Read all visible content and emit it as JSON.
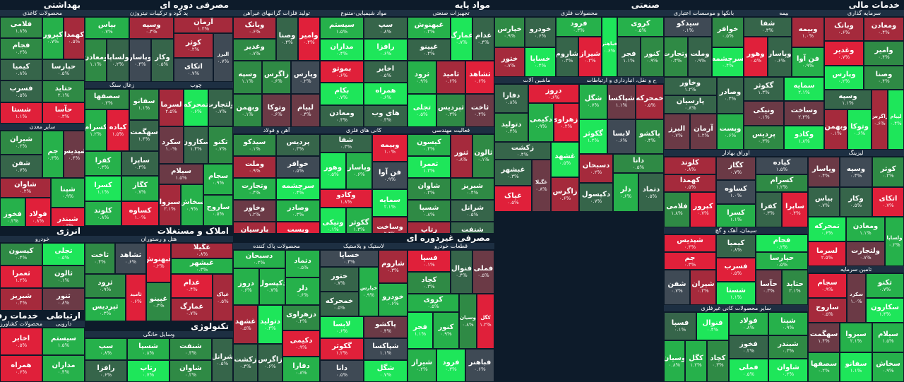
{
  "colors": {
    "strong_pos": "#1ee65a",
    "pos": "#26b14b",
    "mid_pos": "#2f8a45",
    "weak_pos": "#36654a",
    "neutral": "#3f4a55",
    "weak_neg": "#6b3a46",
    "neg": "#a52a3c",
    "strong_neg": "#e0203a"
  },
  "sectors": [
    {
      "id": "mali",
      "title": "خدمات مالی"
    },
    {
      "id": "sanati",
      "title": "صنعتی"
    },
    {
      "id": "mavad",
      "title": "مواد پایه"
    },
    {
      "id": "masraf_doreh",
      "title": "مصرفی دوره ای"
    },
    {
      "id": "behdashti",
      "title": "بهداشتی"
    },
    {
      "id": "masraf_gheir",
      "title": "مصرفی غیردوره ای"
    },
    {
      "id": "amlak",
      "title": "املاک و مستغلات"
    },
    {
      "id": "energy",
      "title": "انرژی"
    },
    {
      "id": "technology",
      "title": "تکنولوژی"
    },
    {
      "id": "ertebat",
      "title": "ارتباطی"
    },
    {
      "id": "refahi",
      "title": "خدمات رفاهی"
    }
  ],
  "subheaders": [
    "سرمایه گذاری",
    "بیمه",
    "بانکها و موسسات اعتباری",
    "لیزینگ",
    "تامین سرمایه",
    "اوراق بهادار",
    "سیمان، آهک و گچ",
    "سایر محصولات کانی غیرفلزی",
    "محصولات فلزی",
    "ح و نقل، انبارداری و ارتباطات",
    "ماشین آلات",
    "تجهیزات صنعتی",
    "فعالیت مهندسی",
    "مواد شیمیایی-متنوع",
    "تولید فلزات گرانبهای غیرآهن",
    "کانی های فلزی",
    "آهن و فولاد",
    "ید گود و ترکیبات نیتروژن",
    "چوب",
    "زغال سنگ",
    "محصولات کاغذی",
    "سایر معدن",
    "قطعات خودرو",
    "لاستیک و پلاستیک",
    "محصولات پاک کننده",
    "هتل و رستوران",
    "خودرو",
    "وسایل خانگی",
    "دارویی",
    "محصولات کشاورزی و دامپروری",
    "محصولات لبنی",
    "سایر محصولات غذایی",
    "قند و شکر",
    "شیرینیجات",
    "نساجی",
    "انبوه سازی، املاک و مستغلات",
    "فرآورده های نفتی",
    "نرم افزار و خدمات",
    "سخت افزار و تجهیزات",
    "خدمات رفاهی-برق"
  ],
  "tiles": [
    {
      "name": "ومعادن",
      "chg": "۰.۴%"
    },
    {
      "name": "وامیر",
      "chg": "۰.۴%"
    },
    {
      "name": "وصنا",
      "chg": "۰.۴%"
    },
    {
      "name": "وبانک",
      "chg": "۰.۶%"
    },
    {
      "name": "وغدیر",
      "chg": "۰.۷%"
    },
    {
      "name": "وپارس",
      "chg": "۰.۲%"
    },
    {
      "name": "لپیام",
      "chg": "۰.۴%"
    },
    {
      "name": "زاگرس",
      "chg": "۰.۶%"
    },
    {
      "name": "وسپه",
      "chg": "۱.۱%"
    },
    {
      "name": "وتوکا",
      "chg": "۰.۶%"
    },
    {
      "name": "وبهمن",
      "chg": "۰.۱%"
    },
    {
      "name": "وبیمه",
      "chg": "۱.۰%"
    },
    {
      "name": "فن آوا",
      "chg": "۰.۹%"
    },
    {
      "name": "شفا",
      "chg": "۰.۳%"
    },
    {
      "name": "وپاسار",
      "chg": "۰.۶%"
    },
    {
      "name": "وهور",
      "chg": "۰.۵%"
    },
    {
      "name": "سمایه",
      "chg": "۲.۱%"
    },
    {
      "name": "وساخت",
      "chg": "۲.۴%"
    },
    {
      "name": "وکادو",
      "chg": "۱.۸%"
    },
    {
      "name": "گکوثر",
      "chg": "۱.۳%"
    },
    {
      "name": "ونیکی",
      "chg": "۰.۱%"
    },
    {
      "name": "پردیس",
      "chg": "۰.۳%"
    },
    {
      "name": "خوافر",
      "chg": "۰.۵%"
    },
    {
      "name": "سرچشمه",
      "chg": "۰.۴%"
    },
    {
      "name": "سیدکو",
      "chg": "۰.۱%"
    },
    {
      "name": "وملت",
      "chg": "۰.۹%"
    },
    {
      "name": "وتجارت",
      "chg": "۰.۴%"
    },
    {
      "name": "وصادر",
      "chg": "۰.۳%"
    },
    {
      "name": "وپست",
      "chg": "۰.۶%"
    },
    {
      "name": "وخاور",
      "chg": "۱.۲%"
    },
    {
      "name": "پارسیان",
      "chg": "۰.۸%"
    },
    {
      "name": "آرمان",
      "chg": "۱.۲%"
    },
    {
      "name": "البرز",
      "chg": "۰.۷%"
    },
    {
      "name": "کوثر",
      "chg": "۰.۲%"
    },
    {
      "name": "اتکای",
      "chg": "۰.۷%"
    },
    {
      "name": "وسپه",
      "chg": "۰.۴%"
    },
    {
      "name": "وکار",
      "chg": "۰.۵%"
    },
    {
      "name": "وپاسار",
      "chg": "۰.۴%"
    },
    {
      "name": "بپاس",
      "chg": "۰.۷%"
    },
    {
      "name": "ولساپا",
      "chg": "۰.۲%"
    },
    {
      "name": "ومعادن",
      "chg": "۱.۱%"
    },
    {
      "name": "ولتجارت",
      "chg": "۰.۷%"
    },
    {
      "name": "تمحرکه",
      "chg": "۰.۶%"
    },
    {
      "name": "لسرما",
      "chg": "۲.۵%"
    },
    {
      "name": "تکنو",
      "chg": "۰.۷%"
    },
    {
      "name": "سکارون",
      "chg": "۱.۴%"
    },
    {
      "name": "سکرد",
      "chg": "۱.۰%"
    },
    {
      "name": "سجام",
      "chg": "۰.۹%"
    },
    {
      "name": "ساروج",
      "chg": "۰.۵%"
    },
    {
      "name": "سیلام",
      "chg": "۱.۵%"
    },
    {
      "name": "سخاش",
      "chg": "۰.۹%"
    },
    {
      "name": "سبزوا",
      "chg": "۲.۱%"
    },
    {
      "name": "سفانو",
      "chg": "۱.۱%"
    },
    {
      "name": "سهگمت",
      "chg": "۱.۴%"
    },
    {
      "name": "سصفها",
      "chg": "۰.۲%"
    },
    {
      "name": "کیاده",
      "chg": "۱.۵%"
    },
    {
      "name": "کسرام",
      "chg": "۱.۲%"
    },
    {
      "name": "ساپرا",
      "chg": "۰.۴%"
    },
    {
      "name": "کفرا",
      "chg": "۰.۳%"
    },
    {
      "name": "کگاز",
      "chg": "۰.۷%"
    },
    {
      "name": "کساوه",
      "chg": "۱.۰%"
    },
    {
      "name": "کسرا",
      "chg": "۱.۱%"
    },
    {
      "name": "کلوند",
      "chg": "۰.۸%"
    },
    {
      "name": "کهمدا",
      "chg": "۰.۵%"
    },
    {
      "name": "کپرور",
      "chg": "۰.۷%"
    },
    {
      "name": "فلامی",
      "chg": "۱.۸%"
    },
    {
      "name": "فجام",
      "chg": "۰.۲%"
    },
    {
      "name": "حپارسا",
      "chg": "۰.۵%"
    },
    {
      "name": "حتاید",
      "chg": "۲.۱%"
    },
    {
      "name": "حآسا",
      "chg": "۰.۳%"
    },
    {
      "name": "کیمیا",
      "chg": "۰.۸%"
    },
    {
      "name": "فسرب",
      "chg": "۰.۵%"
    },
    {
      "name": "شستا",
      "chg": "۱.۱%"
    },
    {
      "name": "شپدیس",
      "chg": "۰.۴%"
    },
    {
      "name": "جم",
      "chg": "۰.۳%"
    },
    {
      "name": "شیران",
      "chg": "۰.۲%"
    },
    {
      "name": "شفن",
      "chg": "۰.۷%"
    },
    {
      "name": "شپنا",
      "chg": "۰.۹%"
    },
    {
      "name": "شبندر",
      "chg": "۰.۳%"
    },
    {
      "name": "شاوان",
      "chg": "۰.۲%"
    },
    {
      "name": "فولاد",
      "chg": "۰.۸%"
    },
    {
      "name": "فخوز",
      "chg": "۰.۲%"
    },
    {
      "name": "فملی",
      "chg": "۰.۵%"
    },
    {
      "name": "فنوال",
      "chg": "۰.۴%"
    },
    {
      "name": "فسپا",
      "chg": "۰.۱%"
    },
    {
      "name": "کچاد",
      "chg": "۰.۳%"
    },
    {
      "name": "کگل",
      "chg": "۱.۲%"
    },
    {
      "name": "وسیان",
      "chg": "۰.۸%"
    },
    {
      "name": "کروی",
      "chg": "۰.۵%"
    },
    {
      "name": "کنور",
      "chg": "۰.۹%"
    },
    {
      "name": "فجر",
      "chg": "۱.۱%"
    },
    {
      "name": "فباهنر",
      "chg": "۰.۶%"
    },
    {
      "name": "فرود",
      "chg": "۰.۳%"
    },
    {
      "name": "شیراز",
      "chg": "۰.۲%"
    },
    {
      "name": "شاروم",
      "chg": "۰.۳%"
    },
    {
      "name": "خودرو",
      "chg": "۰.۶%"
    },
    {
      "name": "خساپا",
      "chg": "۰.۴%"
    },
    {
      "name": "خپارس",
      "chg": "۰.۹%"
    },
    {
      "name": "ختور",
      "chg": "۰.۷%"
    },
    {
      "name": "خمحرکه",
      "chg": "۰.۵%"
    },
    {
      "name": "پاکشو",
      "chg": "۰.۴%"
    },
    {
      "name": "شپاکسا",
      "chg": "۱.۱%"
    },
    {
      "name": "شگل",
      "chg": "۰.۷%"
    },
    {
      "name": "لابسا",
      "chg": "۰.۶%"
    },
    {
      "name": "گکوثر",
      "chg": "۱.۲%"
    },
    {
      "name": "دانا",
      "chg": "۰.۵%"
    },
    {
      "name": "دتماد",
      "chg": "۰.۵%"
    },
    {
      "name": "دلر",
      "chg": "۰.۶%"
    },
    {
      "name": "دسبحان",
      "chg": "۰.۲%"
    },
    {
      "name": "دکپسول",
      "chg": "۰.۷%"
    },
    {
      "name": "دروز",
      "chg": "۰.۶%"
    },
    {
      "name": "دزهراوی",
      "chg": "۰.۲%"
    },
    {
      "name": "دکیمی",
      "chg": "۰.۹%"
    },
    {
      "name": "دفارا",
      "chg": "۰.۸%"
    },
    {
      "name": "دتولید",
      "chg": "۰.۴%"
    },
    {
      "name": "غشهد",
      "chg": "۰.۵%"
    },
    {
      "name": "زاگرس",
      "chg": "۰.۶%"
    },
    {
      "name": "زکشت",
      "chg": "۰.۴%"
    },
    {
      "name": "غگیلا",
      "chg": "۰.۸%"
    },
    {
      "name": "غبشهر",
      "chg": "۰.۳%"
    },
    {
      "name": "غپاک",
      "chg": "۰.۵%"
    },
    {
      "name": "غدام",
      "chg": "۰.۴%"
    },
    {
      "name": "غمارگ",
      "chg": "۰.۷%"
    },
    {
      "name": "غبهنوش",
      "chg": "۰.۲%"
    },
    {
      "name": "غپینو",
      "chg": "۰.۴%"
    },
    {
      "name": "ثشاهد",
      "chg": "۰.۶%"
    },
    {
      "name": "ثاخت",
      "chg": "۰.۴%"
    },
    {
      "name": "ثامید",
      "chg": "۰.۶%"
    },
    {
      "name": "ثرود",
      "chg": "۰.۹%"
    },
    {
      "name": "ثپردیس",
      "chg": "۰.۳%"
    },
    {
      "name": "تجلی",
      "chg": "۰.۵%"
    },
    {
      "name": "ثالون",
      "chg": "۰.۱%"
    },
    {
      "name": "ثنور",
      "chg": "۰.۸%"
    },
    {
      "name": "کیسون",
      "chg": "۰.۴%"
    },
    {
      "name": "ثعمرا",
      "chg": "۱.۲%"
    },
    {
      "name": "شبریز",
      "chg": "۰.۴%"
    },
    {
      "name": "شرانل",
      "chg": "۰.۵%"
    },
    {
      "name": "شنفت",
      "chg": "۰.۳%"
    },
    {
      "name": "شاوان",
      "chg": "۰.۲%"
    },
    {
      "name": "شسپا",
      "chg": "۰.۸%"
    },
    {
      "name": "رتاپ",
      "chg": "۰.۷%"
    },
    {
      "name": "سپ",
      "chg": "۰.۸%"
    },
    {
      "name": "رافزا",
      "chg": "۰.۶%"
    },
    {
      "name": "سیستم",
      "chg": "۱.۵%"
    },
    {
      "name": "مداران",
      "chg": "۰.۴%"
    },
    {
      "name": "اخابر",
      "chg": "۰.۵%"
    },
    {
      "name": "همراه",
      "chg": "۰.۶%"
    },
    {
      "name": "های وب",
      "chg": "۰.۳%"
    },
    {
      "name": "بموتو",
      "chg": "۰.۶%"
    },
    {
      "name": "بکام",
      "chg": "۰.۷%"
    }
  ]
}
